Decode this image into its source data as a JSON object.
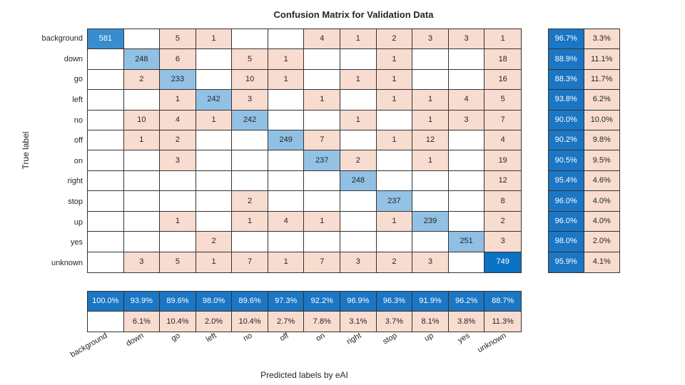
{
  "title": "Confusion Matrix for Validation Data",
  "axes": {
    "xlabel": "Predicted labels by eAI",
    "ylabel": "True label"
  },
  "chart_data": {
    "type": "heatmap",
    "subtype": "confusion-matrix",
    "classes": [
      "background",
      "down",
      "go",
      "left",
      "no",
      "off",
      "on",
      "right",
      "stop",
      "up",
      "yes",
      "unknown"
    ],
    "matrix": [
      [
        581,
        0,
        5,
        1,
        0,
        0,
        4,
        1,
        2,
        3,
        3,
        1
      ],
      [
        0,
        248,
        6,
        0,
        5,
        1,
        0,
        0,
        1,
        0,
        0,
        18
      ],
      [
        0,
        2,
        233,
        0,
        10,
        1,
        0,
        1,
        1,
        0,
        0,
        16
      ],
      [
        0,
        0,
        1,
        242,
        3,
        0,
        1,
        0,
        1,
        1,
        4,
        5
      ],
      [
        0,
        10,
        4,
        1,
        242,
        0,
        0,
        1,
        0,
        1,
        3,
        7
      ],
      [
        0,
        1,
        2,
        0,
        0,
        249,
        7,
        0,
        1,
        12,
        0,
        4
      ],
      [
        0,
        0,
        3,
        0,
        0,
        0,
        237,
        2,
        0,
        1,
        0,
        19
      ],
      [
        0,
        0,
        0,
        0,
        0,
        0,
        0,
        248,
        0,
        0,
        0,
        12
      ],
      [
        0,
        0,
        0,
        0,
        2,
        0,
        0,
        0,
        237,
        0,
        0,
        8
      ],
      [
        0,
        0,
        1,
        0,
        1,
        4,
        1,
        0,
        1,
        239,
        0,
        2
      ],
      [
        0,
        0,
        0,
        2,
        0,
        0,
        0,
        0,
        0,
        0,
        251,
        3
      ],
      [
        0,
        3,
        5,
        1,
        7,
        1,
        7,
        3,
        2,
        3,
        0,
        749
      ]
    ],
    "row_summary": {
      "correct_pct": [
        96.7,
        88.9,
        88.3,
        93.8,
        90.0,
        90.2,
        90.5,
        95.4,
        96.0,
        96.0,
        98.0,
        95.9
      ],
      "incorrect_pct": [
        3.3,
        11.1,
        11.7,
        6.2,
        10.0,
        9.8,
        9.5,
        4.6,
        4.0,
        4.0,
        2.0,
        4.1
      ]
    },
    "column_summary": {
      "correct_pct": [
        100.0,
        93.9,
        89.6,
        98.0,
        89.6,
        97.3,
        92.2,
        96.9,
        96.3,
        91.9,
        96.2,
        88.7
      ],
      "incorrect_pct": [
        null,
        6.1,
        10.4,
        2.0,
        10.4,
        2.7,
        7.8,
        3.1,
        3.7,
        8.1,
        3.8,
        11.3
      ]
    },
    "layout": {
      "legend": "none",
      "grid": "on",
      "x_tick_rotation_deg": -30
    },
    "colors": {
      "diagonal_blue_max": "#0a73c3",
      "diagonal_blue_mid": "#377fc4",
      "diagonal_blue_light": "#90c0e4",
      "off_diagonal_peach": "#f8dcd0",
      "summary_blue": "#1b76c3",
      "zero_cell": "#ffffff",
      "grid_line": "#333333",
      "text_dark": "#262626",
      "text_light": "#ffffff"
    }
  }
}
